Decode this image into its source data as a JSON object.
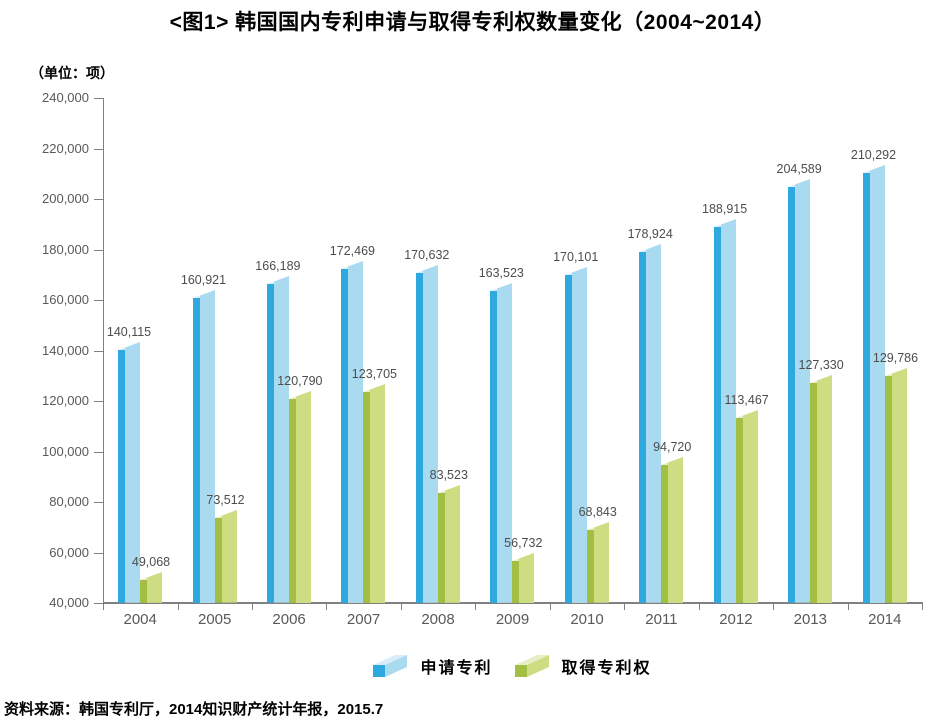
{
  "page": {
    "title": "<图1> 韩国国内专利申请与取得专利权数量变化（2004~2014）",
    "unit_label": "（单位：项）",
    "source": "资料来源：韩国专利厅，2014知识财产统计年报，2015.7"
  },
  "chart_data": {
    "type": "bar",
    "title": "<图1> 韩国国内专利申请与取得专利权数量变化（2004~2014）",
    "unit": "项",
    "categories": [
      "2004",
      "2005",
      "2006",
      "2007",
      "2008",
      "2009",
      "2010",
      "2011",
      "2012",
      "2013",
      "2014"
    ],
    "series": [
      {
        "name": "申请专利",
        "key": "applications",
        "values": [
          140115,
          160921,
          166189,
          172469,
          170632,
          163523,
          170101,
          178924,
          188915,
          204589,
          210292
        ],
        "colors": {
          "front": "#2EA9E0",
          "side": "#A9DAF0",
          "cap": "#D9ECF8"
        }
      },
      {
        "name": "取得专利权",
        "key": "grants",
        "values": [
          49068,
          73512,
          120790,
          123705,
          83523,
          56732,
          68843,
          94720,
          113467,
          127330,
          129786
        ],
        "colors": {
          "front": "#A2BF44",
          "side": "#CFDD82",
          "cap": "#E6EEC6"
        }
      }
    ],
    "ylim": [
      40000,
      240000
    ],
    "ystep": 20000,
    "grid": false,
    "legend_position": "bottom",
    "axis_color": "#808080",
    "value_label_color": "#4d4d4d",
    "tick_label_color": "#595959",
    "xlabel": "",
    "ylabel": ""
  }
}
